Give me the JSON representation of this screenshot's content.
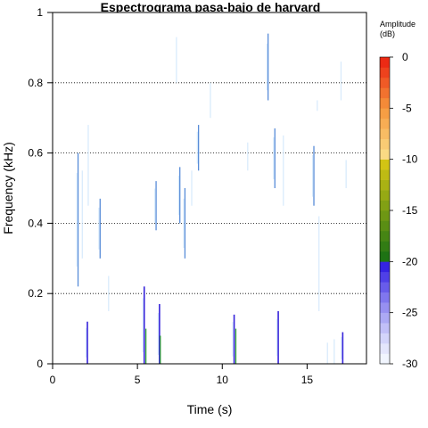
{
  "chart_data": {
    "type": "heatmap",
    "title": "Espectrograma pasa-bajo de harvard",
    "xlabel": "Time (s)",
    "ylabel": "Frequency (kHz)",
    "xlim": [
      0,
      18.5
    ],
    "ylim": [
      0,
      1
    ],
    "xticks": [
      0,
      5,
      10,
      15
    ],
    "yticks": [
      0,
      0.2,
      0.4,
      0.6,
      0.8,
      1
    ],
    "grid_y": [
      0.2,
      0.4,
      0.6,
      0.8
    ],
    "legend": {
      "title_line1": "Amplitude",
      "title_line2": "(dB)",
      "placement": "right",
      "range": [
        -30,
        0
      ],
      "ticks": [
        0,
        -5,
        -10,
        -15,
        -20,
        -25,
        -30
      ]
    },
    "colors": {
      "strong": "#2b18d8",
      "medium": "#4f86d6",
      "weak": "#cfe6fb",
      "green": "#1f9a1f"
    },
    "streaks": [
      {
        "t": 1.5,
        "f0": 0.22,
        "f1": 0.6,
        "level": "medium"
      },
      {
        "t": 1.75,
        "f0": 0.3,
        "f1": 0.55,
        "level": "weak"
      },
      {
        "t": 2.1,
        "f0": 0.45,
        "f1": 0.68,
        "level": "weak"
      },
      {
        "t": 2.05,
        "f0": 0.0,
        "f1": 0.12,
        "level": "strong"
      },
      {
        "t": 2.8,
        "f0": 0.3,
        "f1": 0.47,
        "level": "medium"
      },
      {
        "t": 3.3,
        "f0": 0.15,
        "f1": 0.25,
        "level": "weak"
      },
      {
        "t": 5.4,
        "f0": 0.0,
        "f1": 0.22,
        "level": "strong"
      },
      {
        "t": 5.5,
        "f0": 0.0,
        "f1": 0.1,
        "level": "green"
      },
      {
        "t": 6.1,
        "f0": 0.38,
        "f1": 0.52,
        "level": "medium"
      },
      {
        "t": 6.3,
        "f0": 0.0,
        "f1": 0.17,
        "level": "strong"
      },
      {
        "t": 6.35,
        "f0": 0.0,
        "f1": 0.08,
        "level": "green"
      },
      {
        "t": 7.3,
        "f0": 0.8,
        "f1": 0.93,
        "level": "weak"
      },
      {
        "t": 7.5,
        "f0": 0.4,
        "f1": 0.56,
        "level": "medium"
      },
      {
        "t": 7.8,
        "f0": 0.3,
        "f1": 0.5,
        "level": "medium"
      },
      {
        "t": 8.2,
        "f0": 0.45,
        "f1": 0.55,
        "level": "weak"
      },
      {
        "t": 8.6,
        "f0": 0.55,
        "f1": 0.68,
        "level": "medium"
      },
      {
        "t": 9.3,
        "f0": 0.7,
        "f1": 0.8,
        "level": "weak"
      },
      {
        "t": 10.7,
        "f0": 0.0,
        "f1": 0.14,
        "level": "strong"
      },
      {
        "t": 10.8,
        "f0": 0.0,
        "f1": 0.1,
        "level": "green"
      },
      {
        "t": 11.5,
        "f0": 0.55,
        "f1": 0.63,
        "level": "weak"
      },
      {
        "t": 12.7,
        "f0": 0.75,
        "f1": 0.94,
        "level": "medium"
      },
      {
        "t": 13.1,
        "f0": 0.5,
        "f1": 0.67,
        "level": "medium"
      },
      {
        "t": 13.3,
        "f0": 0.0,
        "f1": 0.15,
        "level": "strong"
      },
      {
        "t": 13.6,
        "f0": 0.45,
        "f1": 0.65,
        "level": "weak"
      },
      {
        "t": 15.4,
        "f0": 0.45,
        "f1": 0.62,
        "level": "medium"
      },
      {
        "t": 15.6,
        "f0": 0.72,
        "f1": 0.75,
        "level": "weak"
      },
      {
        "t": 15.7,
        "f0": 0.15,
        "f1": 0.42,
        "level": "weak"
      },
      {
        "t": 16.2,
        "f0": 0.0,
        "f1": 0.06,
        "level": "weak"
      },
      {
        "t": 16.6,
        "f0": 0.0,
        "f1": 0.07,
        "level": "weak"
      },
      {
        "t": 17.1,
        "f0": 0.0,
        "f1": 0.09,
        "level": "strong"
      },
      {
        "t": 17.3,
        "f0": 0.5,
        "f1": 0.58,
        "level": "weak"
      },
      {
        "t": 17.0,
        "f0": 0.75,
        "f1": 0.86,
        "level": "weak"
      }
    ]
  }
}
